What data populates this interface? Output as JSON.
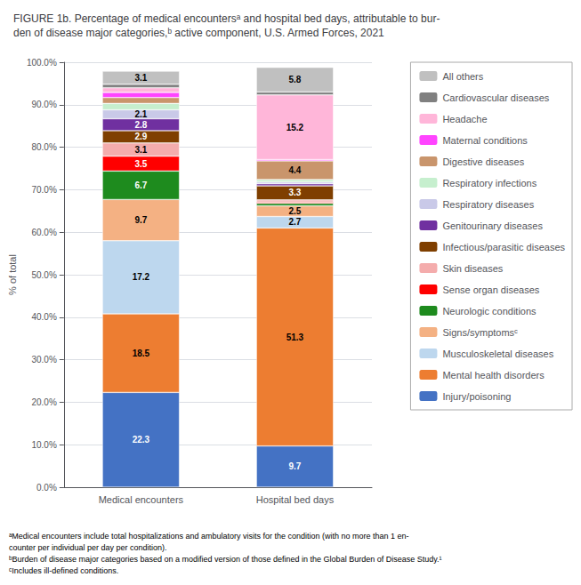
{
  "chart_data": {
    "type": "bar",
    "title": "FIGURE 1b. Percentage of medical encountersᵃ and hospital bed days, attributable to bur-\nden of disease major categories,ᵇ active component, U.S. Armed Forces, 2021",
    "categories": [
      "Medical encounters",
      "Hospital bed days"
    ],
    "ylabel": "% of total",
    "stacked": true,
    "grid": true,
    "legend": "right",
    "data_labels": true,
    "ylim": [
      0,
      100
    ],
    "yticks": [
      {
        "value": 0,
        "label": "0.0%"
      },
      {
        "value": 10,
        "label": "10.0%"
      },
      {
        "value": 20,
        "label": "20.0%"
      },
      {
        "value": 30,
        "label": "30.0%"
      },
      {
        "value": 40,
        "label": "40.0%"
      },
      {
        "value": 50,
        "label": "50.0%"
      },
      {
        "value": 60,
        "label": "60.0%"
      },
      {
        "value": 70,
        "label": "70.0%"
      },
      {
        "value": 80,
        "label": "80.0%"
      },
      {
        "value": 90,
        "label": "90.0%"
      },
      {
        "value": 100,
        "label": "100.0%"
      }
    ],
    "series": [
      {
        "name": "Injury/poisoning",
        "color": "#4472C4",
        "values": [
          22.3,
          9.7
        ],
        "value_labels": [
          "22.3",
          "9.7"
        ]
      },
      {
        "name": "Mental health disorders",
        "color": "#ED7D31",
        "values": [
          18.5,
          51.3
        ],
        "value_labels": [
          "18.5",
          "51.3"
        ]
      },
      {
        "name": "Musculoskeletal diseases",
        "color": "#BDD7EE",
        "values": [
          17.2,
          2.7
        ],
        "value_labels": [
          "17.2",
          "2.7"
        ]
      },
      {
        "name": "Signs/symptomsᶜ",
        "color": "#F4B183",
        "values": [
          9.7,
          2.5
        ],
        "value_labels": [
          "9.7",
          "2.5"
        ]
      },
      {
        "name": "Neurologic conditions",
        "color": "#1E8B1E",
        "values": [
          6.7,
          0.6
        ],
        "value_labels": [
          "6.7",
          null
        ]
      },
      {
        "name": "Sense organ diseases",
        "color": "#FF0000",
        "values": [
          3.5,
          0.3
        ],
        "value_labels": [
          "3.5",
          null
        ]
      },
      {
        "name": "Skin diseases",
        "color": "#F4ACAC",
        "values": [
          3.1,
          0.5
        ],
        "value_labels": [
          "3.1",
          null
        ]
      },
      {
        "name": "Infectious/parasitic diseases",
        "color": "#7F3F00",
        "values": [
          2.9,
          3.3
        ],
        "value_labels": [
          "2.9",
          "3.3"
        ]
      },
      {
        "name": "Genitourinary diseases",
        "color": "#7030A0",
        "values": [
          2.8,
          0.5
        ],
        "value_labels": [
          "2.8",
          null
        ]
      },
      {
        "name": "Respiratory diseases",
        "color": "#C9C9E8",
        "values": [
          2.1,
          0.4
        ],
        "value_labels": [
          "2.1",
          null
        ]
      },
      {
        "name": "Respiratory infections",
        "color": "#C6EFCE",
        "values": [
          1.5,
          0.6
        ],
        "value_labels": [
          null,
          null
        ]
      },
      {
        "name": "Digestive diseases",
        "color": "#C9956C",
        "values": [
          1.4,
          4.4
        ],
        "value_labels": [
          null,
          "4.4"
        ]
      },
      {
        "name": "Maternal conditions",
        "color": "#FF44FF",
        "values": [
          1.2,
          0.3
        ],
        "value_labels": [
          null,
          null
        ]
      },
      {
        "name": "Headache",
        "color": "#FFB6D9",
        "values": [
          1.1,
          15.2
        ],
        "value_labels": [
          null,
          "15.2"
        ]
      },
      {
        "name": "Cardiovascular diseases",
        "color": "#808080",
        "values": [
          0.8,
          0.7
        ],
        "value_labels": [
          null,
          null
        ]
      },
      {
        "name": "All others",
        "color": "#C0C0C0",
        "values": [
          3.1,
          5.8
        ],
        "value_labels": [
          "3.1",
          "5.8"
        ]
      }
    ],
    "annotations": [
      "ᵃMedical encounters include total hospitalizations and ambulatory visits for the condition (with no more than 1 en-",
      "counter per individual per day per condition).",
      "ᵇBurden of disease major categories based on a modified version of those defined in the Global Burden of Disease Study.¹",
      "ᶜIncludes ill-defined conditions."
    ]
  }
}
